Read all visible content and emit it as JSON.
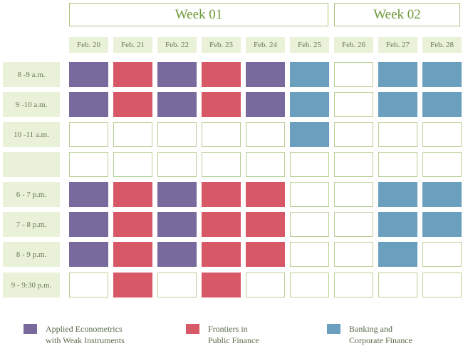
{
  "weeks": [
    "Week 01",
    "Week 02"
  ],
  "days": [
    "Feb. 20",
    "Feb. 21",
    "Feb. 22",
    "Feb. 23",
    "Feb. 24",
    "Feb. 25",
    "Feb. 26",
    "Feb. 27",
    "Feb. 28"
  ],
  "slots": [
    "8 -9 a.m.",
    "9 -10 a.m.",
    "10 -11 a.m.",
    "",
    "6 - 7 p.m.",
    "7 - 8 p.m.",
    "8 - 9 p.m.",
    "9 - 9:30 p.m."
  ],
  "colors": {
    "c1": "#786a9c",
    "c2": "#d75866",
    "c3": "#6b9fbe"
  },
  "schedule": [
    [
      1,
      2,
      1,
      2,
      1,
      3,
      0,
      3,
      3
    ],
    [
      1,
      2,
      1,
      2,
      1,
      3,
      0,
      3,
      3
    ],
    [
      0,
      0,
      0,
      0,
      0,
      3,
      0,
      0,
      0
    ],
    [
      0,
      0,
      0,
      0,
      0,
      0,
      0,
      0,
      0
    ],
    [
      1,
      2,
      1,
      2,
      2,
      0,
      0,
      3,
      3
    ],
    [
      1,
      2,
      1,
      2,
      2,
      0,
      0,
      3,
      3
    ],
    [
      1,
      2,
      1,
      2,
      2,
      0,
      0,
      3,
      0
    ],
    [
      0,
      2,
      0,
      2,
      0,
      0,
      0,
      0,
      0
    ]
  ],
  "legend": [
    {
      "key": "c1",
      "label": "Applied  Econometrics\nwith Weak Instruments"
    },
    {
      "key": "c2",
      "label": "Frontiers in\nPublic Finance"
    },
    {
      "key": "c3",
      "label": "Banking and\nCorporate Finance"
    }
  ]
}
